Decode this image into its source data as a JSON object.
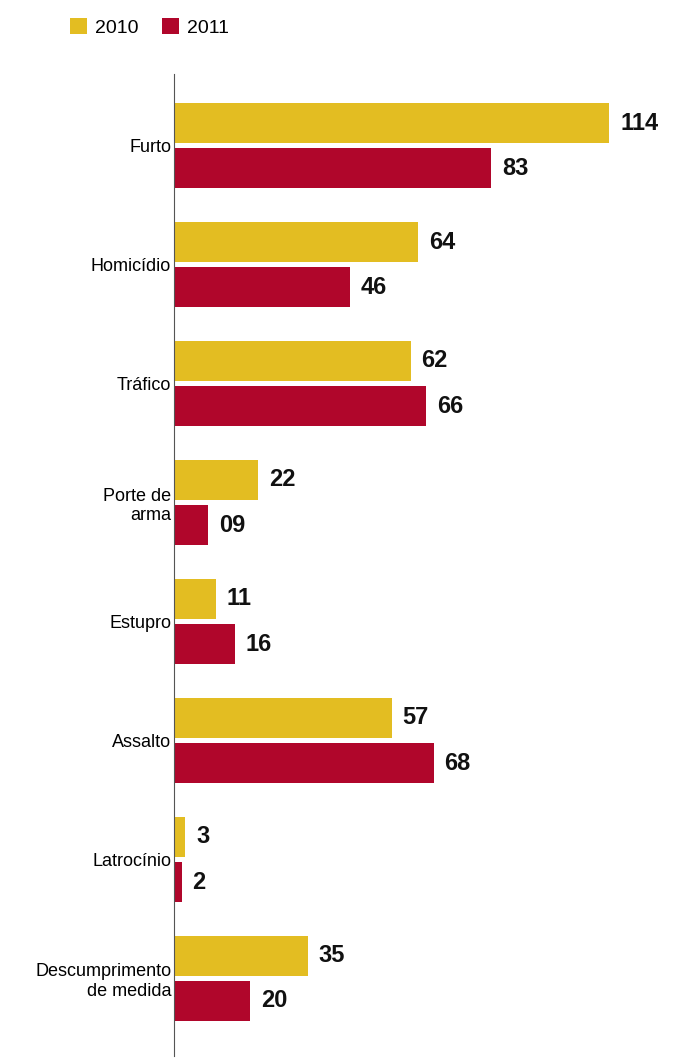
{
  "chart_data": {
    "type": "bar",
    "orientation": "horizontal",
    "data_labels": true,
    "tick_labels": "y",
    "legend": "upper left",
    "categories": [
      "Furto",
      "Homicídio",
      "Tráfico",
      "Porte de\narma",
      "Estupro",
      "Assalto",
      "Latrocínio",
      "Descumprimento\nde medida"
    ],
    "series": [
      {
        "name": "2010",
        "color": "#e3bd22",
        "values": [
          114,
          64,
          62,
          22,
          11,
          57,
          3,
          35
        ]
      },
      {
        "name": "2011",
        "color": "#b0062b",
        "values": [
          83,
          46,
          66,
          9,
          16,
          68,
          2,
          20
        ],
        "value_labels": [
          "83",
          "46",
          "66",
          "09",
          "16",
          "68",
          "2",
          "20"
        ]
      }
    ]
  }
}
